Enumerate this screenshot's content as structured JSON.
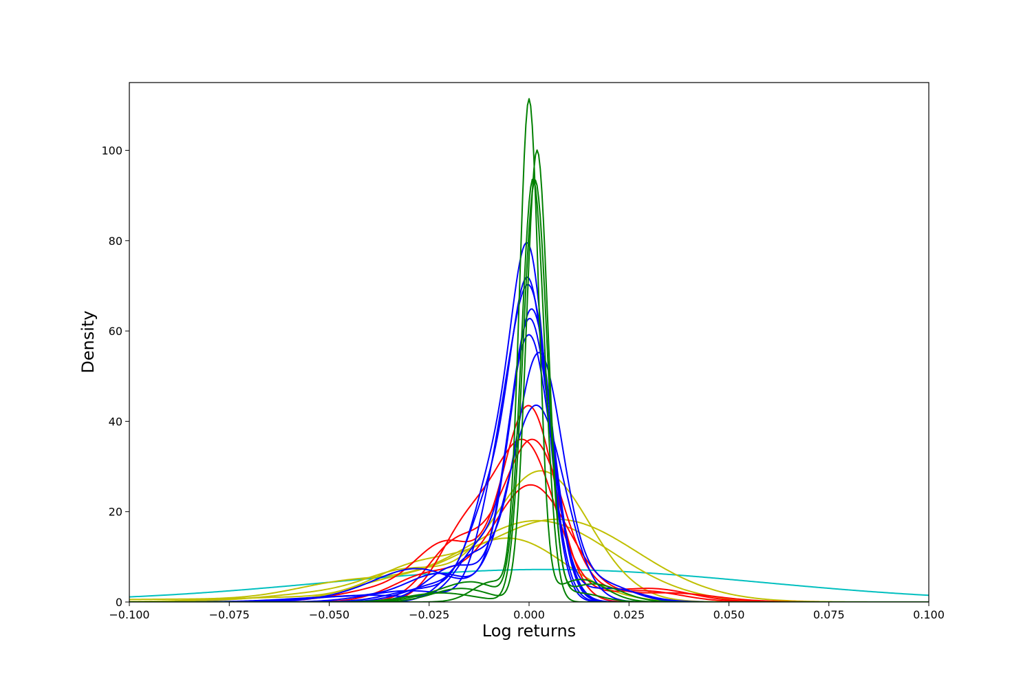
{
  "chart_data": {
    "type": "line",
    "title": "",
    "xlabel": "Log returns",
    "ylabel": "Density",
    "xlim": [
      -0.1,
      0.1
    ],
    "ylim": [
      0,
      115
    ],
    "grid": false,
    "legend": "none",
    "x_ticks": [
      -0.1,
      -0.075,
      -0.05,
      -0.025,
      0.0,
      0.025,
      0.05,
      0.075,
      0.1
    ],
    "x_tick_labels": [
      "−0.100",
      "−0.075",
      "−0.050",
      "−0.025",
      "0.000",
      "0.025",
      "0.050",
      "0.075",
      "0.100"
    ],
    "y_ticks": [
      0,
      20,
      40,
      60,
      80,
      100
    ],
    "y_tick_labels": [
      "0",
      "20",
      "40",
      "60",
      "80",
      "100"
    ],
    "colors": {
      "green": "#008000",
      "blue": "#0000ff",
      "red": "#ff0000",
      "yellow": "#bfbf00",
      "cyan": "#00bfbf"
    },
    "series": [
      {
        "color": "#00bfbf",
        "peak_x": 0.004,
        "peak_y": 7.2,
        "sigma": 0.054,
        "tail_x": [],
        "tail_y": []
      },
      {
        "color": "#bfbf00",
        "peak_x": 0.003,
        "peak_y": 29,
        "sigma": 0.012,
        "tail_x": [
          -0.03,
          -0.05
        ],
        "tail_y": [
          6,
          2
        ]
      },
      {
        "color": "#bfbf00",
        "peak_x": 0.002,
        "peak_y": 18,
        "sigma": 0.019,
        "tail_x": [
          -0.045,
          -0.09
        ],
        "tail_y": [
          4,
          0.6
        ]
      },
      {
        "color": "#bfbf00",
        "peak_x": 0.007,
        "peak_y": 18.3,
        "sigma": 0.02,
        "tail_x": [
          -0.03,
          -0.06
        ],
        "tail_y": [
          5,
          1
        ]
      },
      {
        "color": "#bfbf00",
        "peak_x": -0.005,
        "peak_y": 14,
        "sigma": 0.014,
        "tail_x": [
          -0.035
        ],
        "tail_y": [
          4
        ]
      },
      {
        "color": "#ff0000",
        "peak_x": 0.0,
        "peak_y": 43,
        "sigma": 0.0065,
        "tail_x": [
          -0.02,
          -0.035
        ],
        "tail_y": [
          12,
          3
        ]
      },
      {
        "color": "#ff0000",
        "peak_x": 0.001,
        "peak_y": 35.5,
        "sigma": 0.0075,
        "tail_x": [
          -0.018,
          0.03
        ],
        "tail_y": [
          13,
          3
        ]
      },
      {
        "color": "#ff0000",
        "peak_x": -0.001,
        "peak_y": 34.5,
        "sigma": 0.0075,
        "tail_x": [
          -0.016,
          0.028
        ],
        "tail_y": [
          15,
          2.5
        ]
      },
      {
        "color": "#ff0000",
        "peak_x": 0.0005,
        "peak_y": 25.8,
        "sigma": 0.0095,
        "tail_x": [
          -0.025,
          0.035
        ],
        "tail_y": [
          6,
          2
        ]
      },
      {
        "color": "#0000ff",
        "peak_x": 0.0,
        "peak_y": 73.8,
        "sigma": 0.0045,
        "tail_x": [
          -0.009,
          -0.022
        ],
        "tail_y": [
          25,
          4
        ]
      },
      {
        "color": "#0000ff",
        "peak_x": 0.0,
        "peak_y": 68.2,
        "sigma": 0.0048,
        "tail_x": [
          -0.01,
          -0.025
        ],
        "tail_y": [
          20,
          3
        ]
      },
      {
        "color": "#0000ff",
        "peak_x": 0.0005,
        "peak_y": 65,
        "sigma": 0.005,
        "tail_x": [
          -0.008,
          -0.03
        ],
        "tail_y": [
          22,
          2.5
        ]
      },
      {
        "color": "#0000ff",
        "peak_x": 0.0008,
        "peak_y": 63.8,
        "sigma": 0.005,
        "tail_x": [
          -0.012,
          -0.04
        ],
        "tail_y": [
          12,
          1.5
        ]
      },
      {
        "color": "#0000ff",
        "peak_x": 0.0002,
        "peak_y": 62.3,
        "sigma": 0.0052,
        "tail_x": [
          -0.018,
          0.02
        ],
        "tail_y": [
          8,
          3
        ]
      },
      {
        "color": "#0000ff",
        "peak_x": 0.0,
        "peak_y": 59,
        "sigma": 0.0055,
        "tail_x": [
          -0.022,
          -0.045
        ],
        "tail_y": [
          6,
          1.2
        ]
      },
      {
        "color": "#0000ff",
        "peak_x": 0.0025,
        "peak_y": 54.5,
        "sigma": 0.0058,
        "tail_x": [
          -0.014,
          0.018
        ],
        "tail_y": [
          10,
          4
        ]
      },
      {
        "color": "#0000ff",
        "peak_x": 0.0018,
        "peak_y": 43.5,
        "sigma": 0.007,
        "tail_x": [
          -0.026,
          -0.035
        ],
        "tail_y": [
          5,
          3
        ]
      },
      {
        "color": "#008000",
        "peak_x": 0.0,
        "peak_y": 110,
        "sigma": 0.0024,
        "tail_x": [
          -0.009,
          0.013
        ],
        "tail_y": [
          4.5,
          5
        ]
      },
      {
        "color": "#008000",
        "peak_x": 0.002,
        "peak_y": 99.5,
        "sigma": 0.0027,
        "tail_x": [
          -0.017,
          0.016
        ],
        "tail_y": [
          3,
          4
        ]
      },
      {
        "color": "#008000",
        "peak_x": 0.001,
        "peak_y": 93.5,
        "sigma": 0.0029,
        "tail_x": [
          -0.013,
          -0.02
        ],
        "tail_y": [
          3,
          2
        ]
      },
      {
        "color": "#008000",
        "peak_x": 0.0015,
        "peak_y": 93,
        "sigma": 0.003,
        "tail_x": [
          -0.022,
          0.012
        ],
        "tail_y": [
          2,
          2
        ]
      }
    ]
  }
}
